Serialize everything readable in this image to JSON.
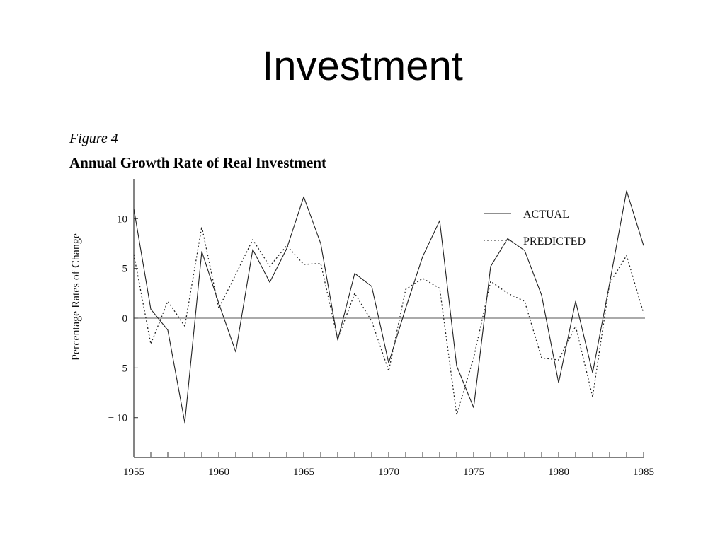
{
  "slide": {
    "title": "Investment"
  },
  "figure": {
    "label": "Figure 4"
  },
  "chart_data": {
    "type": "line",
    "title": "Annual Growth Rate of Real Investment",
    "xlabel": "",
    "ylabel": "Percentage Rates of Change",
    "xlim": [
      1955,
      1985
    ],
    "ylim": [
      -14,
      14
    ],
    "x_ticks": [
      1955,
      1960,
      1965,
      1970,
      1975,
      1980,
      1985
    ],
    "y_ticks": [
      10,
      5,
      0,
      -5,
      -10
    ],
    "y_tick_labels": [
      "10",
      "5",
      "0",
      "− 5",
      "− 10"
    ],
    "zero_line": true,
    "grid": false,
    "legend_position": "top-right",
    "x": [
      1955,
      1956,
      1957,
      1958,
      1959,
      1960,
      1961,
      1962,
      1963,
      1964,
      1965,
      1966,
      1967,
      1968,
      1969,
      1970,
      1971,
      1972,
      1973,
      1974,
      1975,
      1976,
      1977,
      1978,
      1979,
      1980,
      1981,
      1982,
      1983,
      1984,
      1985
    ],
    "series": [
      {
        "name": "ACTUAL",
        "style": "solid",
        "values": [
          11.0,
          0.9,
          -1.2,
          -10.5,
          6.7,
          1.5,
          -3.4,
          6.9,
          3.6,
          7.0,
          12.2,
          7.5,
          -2.2,
          4.5,
          3.2,
          -4.5,
          1.0,
          6.2,
          9.8,
          -4.8,
          -9.0,
          5.2,
          8.0,
          6.8,
          2.3,
          -6.5,
          1.7,
          -5.5,
          3.5,
          12.8,
          7.3
        ]
      },
      {
        "name": "PREDICTED",
        "style": "dotted",
        "values": [
          6.4,
          -2.6,
          1.7,
          -0.8,
          9.2,
          1.0,
          4.4,
          7.9,
          5.2,
          7.3,
          5.4,
          5.5,
          -2.1,
          2.5,
          -0.3,
          -5.3,
          2.9,
          4.0,
          3.0,
          -9.7,
          -4.0,
          3.7,
          2.5,
          1.7,
          -4.0,
          -4.2,
          -0.8,
          -7.9,
          3.5,
          6.3,
          0.5
        ]
      }
    ]
  }
}
